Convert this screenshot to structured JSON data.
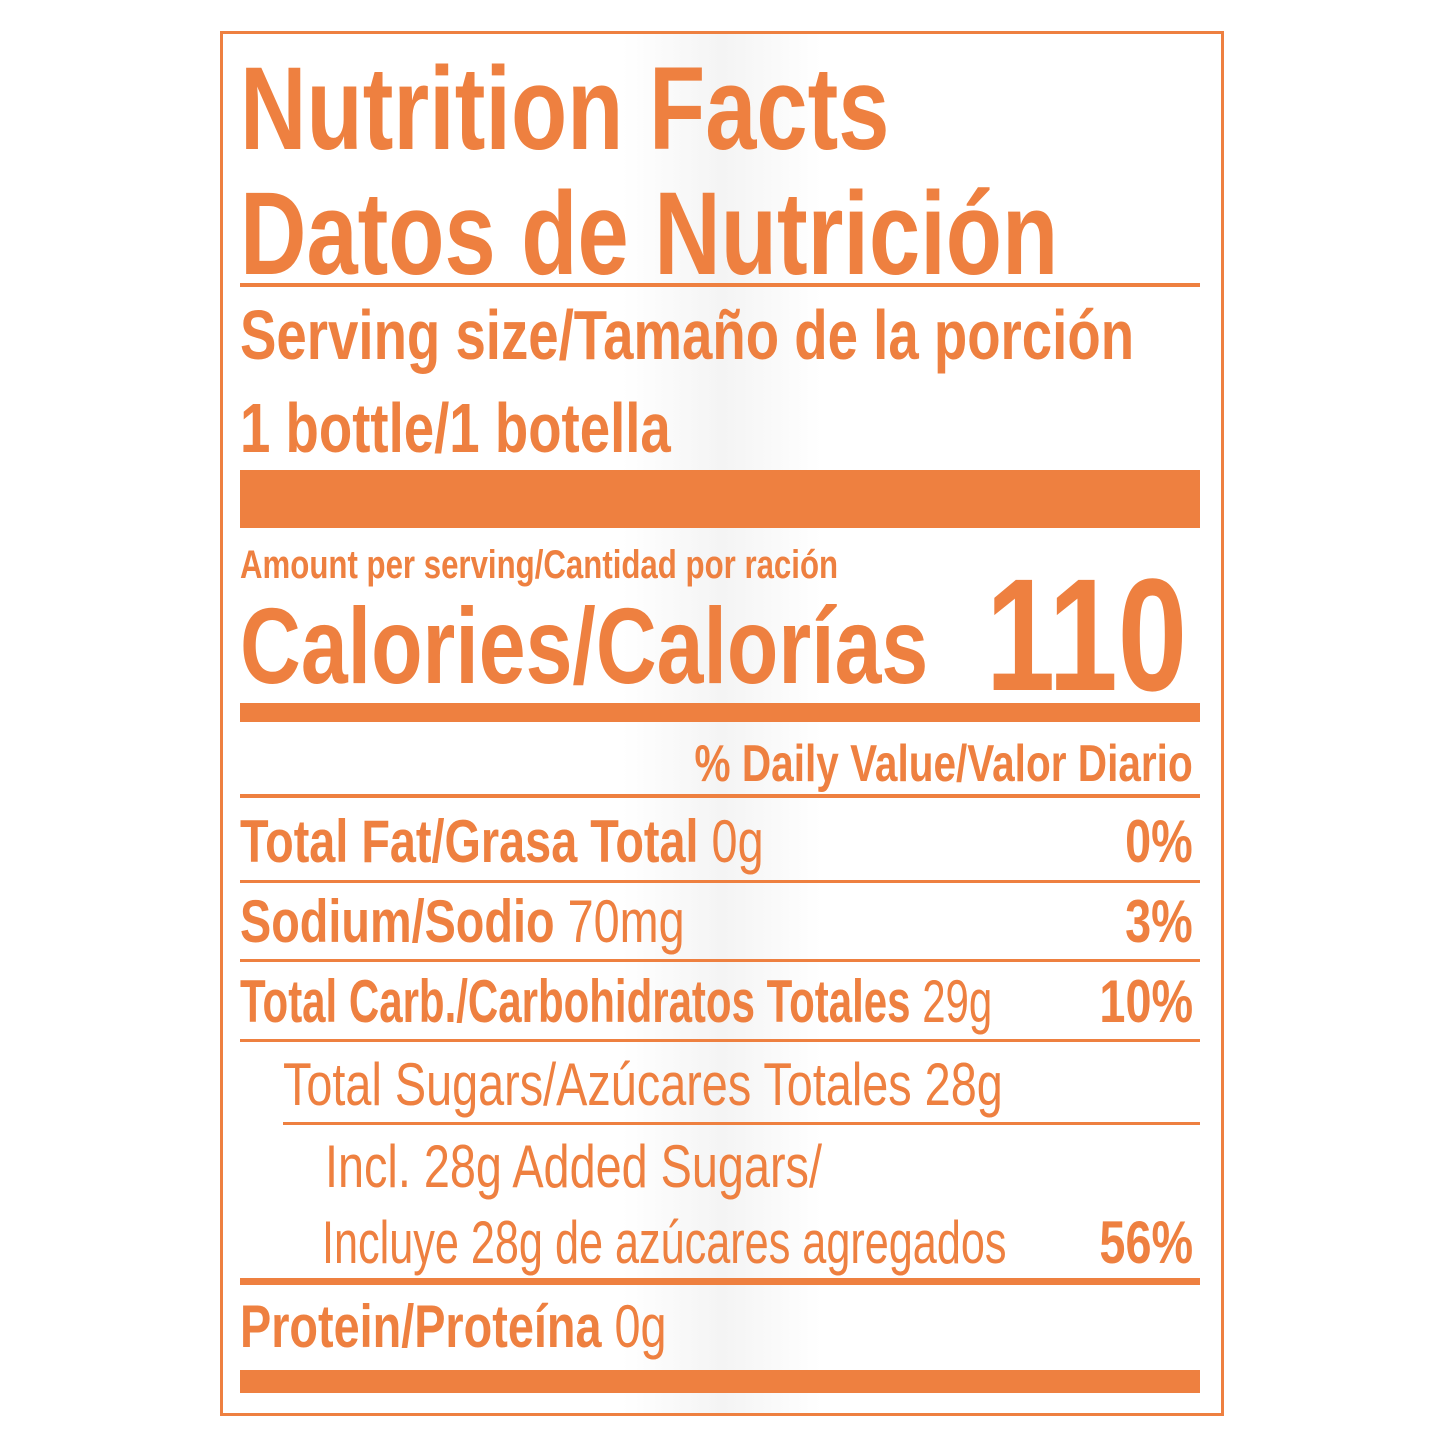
{
  "title": {
    "line1": "Nutrition Facts",
    "line2": "Datos de Nutrición"
  },
  "serving": {
    "label": "Serving size/Tamaño de la porción",
    "value": "1 bottle/1 botella"
  },
  "amount_per_serving": "Amount per serving/Cantidad por ración",
  "calories": {
    "label": "Calories/Calorías",
    "value": "110"
  },
  "daily_value_header": "% Daily Value/Valor Diario",
  "nutrients": [
    {
      "label": "Total Fat/Grasa Total",
      "amount": "0g",
      "dv": "0%"
    },
    {
      "label": "Sodium/Sodio",
      "amount": "70mg",
      "dv": "3%"
    },
    {
      "label": "Total Carb./Carbohidratos Totales",
      "amount": "29g",
      "dv": "10%"
    },
    {
      "label": "Total Sugars/Azúcares Totales 28g"
    },
    {
      "label": "Incl. 28g Added Sugars/",
      "label2": "Incluye 28g de azúcares agregados",
      "dv": "56%"
    },
    {
      "label": "Protein/Proteína",
      "amount": "0g"
    }
  ],
  "colors": {
    "accent": "#ee8040"
  }
}
